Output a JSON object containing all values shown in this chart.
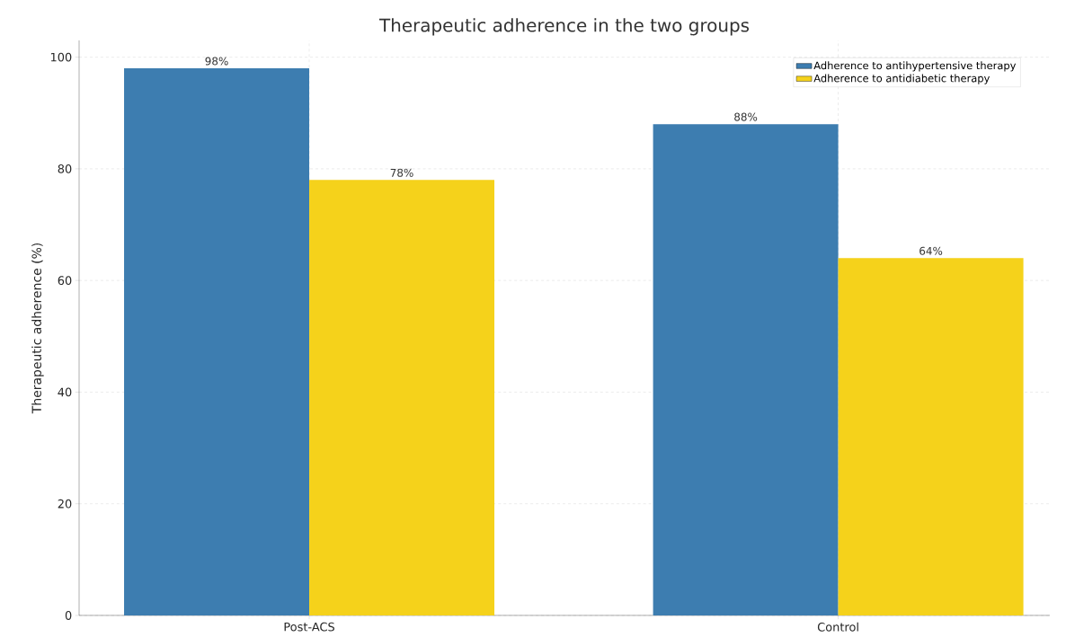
{
  "chart_data": {
    "type": "bar",
    "title": "Therapeutic adherence in the two groups",
    "ylabel": "Therapeutic adherence (%)",
    "categories": [
      "Post-ACS",
      "Control"
    ],
    "series": [
      {
        "name": "Adherence to antihypertensive therapy",
        "color": "#3d7db0",
        "values": [
          98,
          88
        ],
        "value_labels": [
          "98%",
          "88%"
        ]
      },
      {
        "name": "Adherence to antidiabetic therapy",
        "color": "#f5d21b",
        "values": [
          78,
          64
        ],
        "value_labels": [
          "78%",
          "64%"
        ]
      }
    ],
    "ylim": [
      0,
      103
    ],
    "yticks": [
      0,
      20,
      40,
      60,
      80,
      100
    ],
    "grid": true,
    "legend": "top right"
  }
}
